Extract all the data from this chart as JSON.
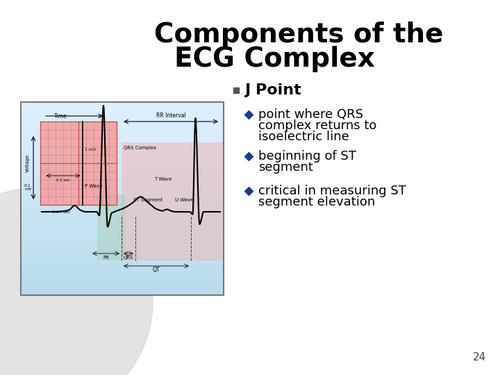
{
  "title_line1": "Components of the",
  "title_line2": "ECG Complex",
  "title_fontsize": 28,
  "title_color": "#000000",
  "bullet_main": "J Point",
  "bullet_main_fontsize": 16,
  "sub_bullets": [
    "point where QRS\ncomplex returns to\nisoelectric line",
    "beginning of ST\nsegment",
    "critical in measuring ST\nsegment elevation"
  ],
  "sub_bullet_fontsize": 13,
  "background_color": "#ffffff",
  "page_number": "24",
  "ecg_bg_color": "#b8dced",
  "ecg_bg_color2": "#d0e8f5",
  "pink_color": "#f5c0c0",
  "green_color": "#b0d8b8",
  "red_grid_color": "#e88888",
  "gray_circle_color": "#c8c8c8"
}
